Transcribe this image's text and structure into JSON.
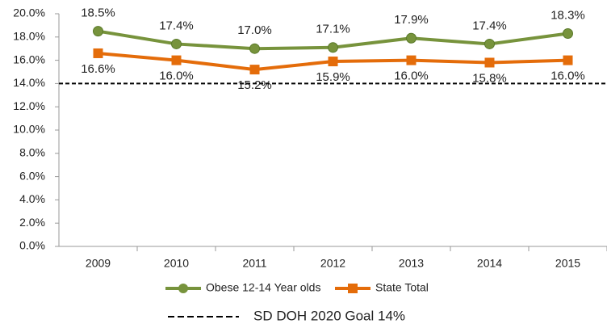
{
  "chart_data": {
    "type": "line",
    "categories": [
      "2009",
      "2010",
      "2011",
      "2012",
      "2013",
      "2014",
      "2015"
    ],
    "series": [
      {
        "name": "Obese 12-14 Year olds",
        "color": "#77933c",
        "marker": "circle",
        "values": [
          18.5,
          17.4,
          17.0,
          17.1,
          17.9,
          17.4,
          18.3
        ],
        "value_labels": [
          "18.5%",
          "17.4%",
          "17.0%",
          "17.1%",
          "17.9%",
          "17.4%",
          "18.3%"
        ]
      },
      {
        "name": "State Total",
        "color": "#e46c0a",
        "marker": "square",
        "values": [
          16.6,
          16.0,
          15.2,
          15.9,
          16.0,
          15.8,
          16.0
        ],
        "value_labels": [
          "16.6%",
          "16.0%",
          "15.2%",
          "15.9%",
          "16.0%",
          "15.8%",
          "16.0%"
        ]
      }
    ],
    "goal_line": {
      "value": 14,
      "label": "SD DOH 2020 Goal 14%"
    },
    "ylim": [
      0,
      20
    ],
    "yticks": [
      {
        "value": 0,
        "label": "0.0%"
      },
      {
        "value": 2,
        "label": "2.0%"
      },
      {
        "value": 4,
        "label": "4.0%"
      },
      {
        "value": 6,
        "label": "6.0%"
      },
      {
        "value": 8,
        "label": "8.0%"
      },
      {
        "value": 10,
        "label": "10.0%"
      },
      {
        "value": 12,
        "label": "12.0%"
      },
      {
        "value": 14,
        "label": "14.0%"
      },
      {
        "value": 16,
        "label": "16.0%"
      },
      {
        "value": 18,
        "label": "18.0%"
      },
      {
        "value": 20,
        "label": "20.0%"
      }
    ],
    "grid": false
  }
}
